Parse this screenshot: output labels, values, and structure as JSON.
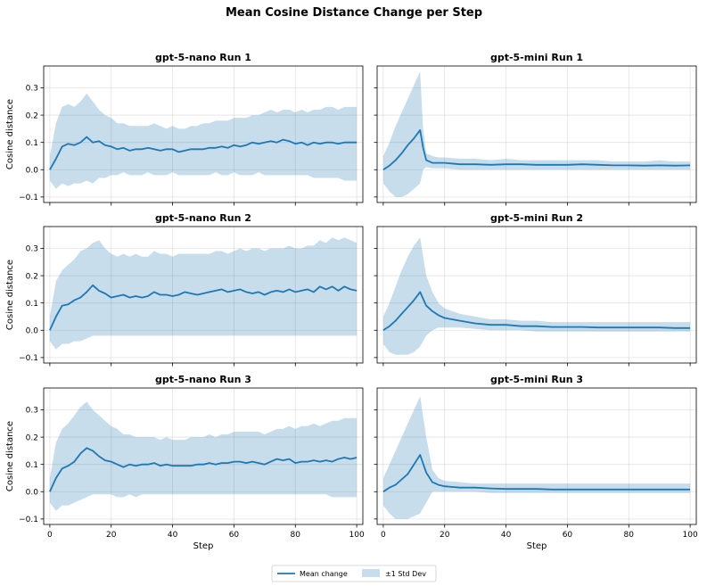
{
  "figure_title": "Mean Cosine Distance Change per Step",
  "colors": {
    "series": "#1f77b4",
    "band": "#1f77b4"
  },
  "legend": {
    "mean_label": "Mean change",
    "band_label": "±1 Std Dev",
    "placement": "bottom-center"
  },
  "chart_data": [
    {
      "type": "line",
      "title": "gpt-5-nano Run 1",
      "xlabel": "",
      "ylabel": "Cosine distance",
      "xlim": [
        -2,
        102
      ],
      "ylim": [
        -0.12,
        0.38
      ],
      "grid": true,
      "xticks": [
        "0",
        "20",
        "40",
        "60",
        "80",
        "100"
      ],
      "yticks": [
        "−0.1",
        "0.0",
        "0.1",
        "0.2",
        "0.3"
      ],
      "show_xtick_labels": false,
      "show_ytick_labels": true,
      "x": [
        0,
        2,
        4,
        6,
        8,
        10,
        12,
        14,
        16,
        18,
        20,
        22,
        24,
        26,
        28,
        30,
        32,
        34,
        36,
        38,
        40,
        42,
        44,
        46,
        48,
        50,
        52,
        54,
        56,
        58,
        60,
        62,
        64,
        66,
        68,
        70,
        72,
        74,
        76,
        78,
        80,
        82,
        84,
        86,
        88,
        90,
        92,
        94,
        96,
        98,
        100
      ],
      "mean": [
        0.0,
        0.04,
        0.085,
        0.095,
        0.09,
        0.1,
        0.12,
        0.1,
        0.105,
        0.09,
        0.085,
        0.075,
        0.08,
        0.07,
        0.075,
        0.075,
        0.08,
        0.075,
        0.07,
        0.075,
        0.075,
        0.065,
        0.07,
        0.075,
        0.075,
        0.075,
        0.08,
        0.08,
        0.085,
        0.08,
        0.09,
        0.085,
        0.09,
        0.1,
        0.095,
        0.1,
        0.105,
        0.1,
        0.11,
        0.105,
        0.095,
        0.1,
        0.09,
        0.1,
        0.095,
        0.1,
        0.1,
        0.095,
        0.1,
        0.1,
        0.1
      ],
      "upper": [
        0.05,
        0.17,
        0.23,
        0.24,
        0.23,
        0.25,
        0.28,
        0.25,
        0.22,
        0.2,
        0.19,
        0.17,
        0.17,
        0.16,
        0.16,
        0.16,
        0.16,
        0.17,
        0.16,
        0.15,
        0.16,
        0.15,
        0.15,
        0.16,
        0.16,
        0.17,
        0.17,
        0.18,
        0.18,
        0.18,
        0.19,
        0.19,
        0.19,
        0.2,
        0.2,
        0.21,
        0.22,
        0.21,
        0.22,
        0.22,
        0.21,
        0.22,
        0.21,
        0.22,
        0.22,
        0.23,
        0.23,
        0.22,
        0.23,
        0.23,
        0.23
      ],
      "lower": [
        -0.04,
        -0.07,
        -0.05,
        -0.06,
        -0.05,
        -0.05,
        -0.04,
        -0.05,
        -0.03,
        -0.03,
        -0.02,
        -0.02,
        -0.01,
        -0.02,
        -0.02,
        -0.02,
        -0.01,
        -0.02,
        -0.02,
        -0.02,
        -0.01,
        -0.02,
        -0.02,
        -0.02,
        -0.02,
        -0.02,
        -0.02,
        -0.01,
        -0.02,
        -0.02,
        -0.01,
        -0.02,
        -0.02,
        -0.02,
        -0.01,
        -0.02,
        -0.02,
        -0.02,
        -0.02,
        -0.02,
        -0.02,
        -0.02,
        -0.02,
        -0.03,
        -0.03,
        -0.03,
        -0.03,
        -0.03,
        -0.04,
        -0.04,
        -0.04
      ]
    },
    {
      "type": "line",
      "title": "gpt-5-mini Run 1",
      "xlabel": "",
      "ylabel": "",
      "xlim": [
        -2,
        102
      ],
      "ylim": [
        -0.12,
        0.38
      ],
      "grid": true,
      "xticks": [
        "0",
        "20",
        "40",
        "60",
        "80",
        "100"
      ],
      "yticks": [
        "−0.1",
        "0.0",
        "0.1",
        "0.2",
        "0.3"
      ],
      "show_xtick_labels": false,
      "show_ytick_labels": false,
      "x": [
        0,
        2,
        4,
        6,
        8,
        10,
        12,
        13,
        14,
        16,
        18,
        20,
        25,
        30,
        35,
        40,
        45,
        50,
        55,
        60,
        65,
        70,
        75,
        80,
        85,
        90,
        95,
        100
      ],
      "mean": [
        0.0,
        0.015,
        0.035,
        0.06,
        0.09,
        0.115,
        0.145,
        0.08,
        0.035,
        0.025,
        0.025,
        0.025,
        0.02,
        0.02,
        0.018,
        0.02,
        0.02,
        0.018,
        0.018,
        0.018,
        0.02,
        0.018,
        0.016,
        0.016,
        0.015,
        0.016,
        0.015,
        0.016
      ],
      "upper": [
        0.05,
        0.1,
        0.16,
        0.21,
        0.26,
        0.31,
        0.36,
        0.15,
        0.06,
        0.05,
        0.045,
        0.045,
        0.04,
        0.04,
        0.035,
        0.04,
        0.035,
        0.035,
        0.035,
        0.035,
        0.035,
        0.035,
        0.03,
        0.03,
        0.03,
        0.035,
        0.03,
        0.03
      ],
      "lower": [
        -0.05,
        -0.08,
        -0.1,
        -0.1,
        -0.09,
        -0.07,
        -0.05,
        0.0,
        0.01,
        0.005,
        0.005,
        0.005,
        0.0,
        0.0,
        0.0,
        0.0,
        0.0,
        0.0,
        0.0,
        0.0,
        0.0,
        0.0,
        0.0,
        0.0,
        0.0,
        0.0,
        0.0,
        0.0
      ]
    },
    {
      "type": "line",
      "title": "gpt-5-nano Run 2",
      "xlabel": "",
      "ylabel": "Cosine distance",
      "xlim": [
        -2,
        102
      ],
      "ylim": [
        -0.12,
        0.38
      ],
      "grid": true,
      "xticks": [
        "0",
        "20",
        "40",
        "60",
        "80",
        "100"
      ],
      "yticks": [
        "−0.1",
        "0.0",
        "0.1",
        "0.2",
        "0.3"
      ],
      "show_xtick_labels": false,
      "show_ytick_labels": true,
      "x": [
        0,
        2,
        4,
        6,
        8,
        10,
        12,
        14,
        16,
        18,
        20,
        22,
        24,
        26,
        28,
        30,
        32,
        34,
        36,
        38,
        40,
        42,
        44,
        46,
        48,
        50,
        52,
        54,
        56,
        58,
        60,
        62,
        64,
        66,
        68,
        70,
        72,
        74,
        76,
        78,
        80,
        82,
        84,
        86,
        88,
        90,
        92,
        94,
        96,
        98,
        100
      ],
      "mean": [
        0.0,
        0.05,
        0.09,
        0.095,
        0.11,
        0.12,
        0.14,
        0.165,
        0.145,
        0.135,
        0.12,
        0.125,
        0.13,
        0.12,
        0.125,
        0.12,
        0.125,
        0.14,
        0.13,
        0.13,
        0.125,
        0.13,
        0.14,
        0.135,
        0.13,
        0.135,
        0.14,
        0.145,
        0.15,
        0.14,
        0.145,
        0.15,
        0.14,
        0.135,
        0.14,
        0.13,
        0.14,
        0.145,
        0.14,
        0.15,
        0.14,
        0.145,
        0.15,
        0.14,
        0.16,
        0.15,
        0.16,
        0.145,
        0.16,
        0.15,
        0.145
      ],
      "upper": [
        0.05,
        0.18,
        0.22,
        0.24,
        0.26,
        0.29,
        0.3,
        0.32,
        0.33,
        0.3,
        0.28,
        0.27,
        0.28,
        0.27,
        0.28,
        0.27,
        0.27,
        0.29,
        0.28,
        0.28,
        0.27,
        0.28,
        0.28,
        0.28,
        0.28,
        0.28,
        0.28,
        0.29,
        0.29,
        0.28,
        0.29,
        0.3,
        0.29,
        0.3,
        0.3,
        0.29,
        0.3,
        0.3,
        0.3,
        0.31,
        0.3,
        0.3,
        0.31,
        0.31,
        0.33,
        0.32,
        0.34,
        0.33,
        0.34,
        0.33,
        0.32
      ],
      "lower": [
        -0.04,
        -0.07,
        -0.05,
        -0.05,
        -0.04,
        -0.04,
        -0.03,
        -0.02,
        -0.02,
        -0.02,
        -0.02,
        -0.02,
        -0.02,
        -0.02,
        -0.02,
        -0.02,
        -0.02,
        -0.02,
        -0.02,
        -0.02,
        -0.02,
        -0.02,
        -0.02,
        -0.02,
        -0.02,
        -0.02,
        -0.02,
        -0.02,
        -0.02,
        -0.02,
        -0.02,
        -0.02,
        -0.02,
        -0.02,
        -0.02,
        -0.02,
        -0.02,
        -0.02,
        -0.02,
        -0.02,
        -0.02,
        -0.02,
        -0.02,
        -0.02,
        -0.02,
        -0.02,
        -0.02,
        -0.02,
        -0.02,
        -0.02,
        -0.02
      ]
    },
    {
      "type": "line",
      "title": "gpt-5-mini Run 2",
      "xlabel": "",
      "ylabel": "",
      "xlim": [
        -2,
        102
      ],
      "ylim": [
        -0.12,
        0.38
      ],
      "grid": true,
      "xticks": [
        "0",
        "20",
        "40",
        "60",
        "80",
        "100"
      ],
      "yticks": [
        "−0.1",
        "0.0",
        "0.1",
        "0.2",
        "0.3"
      ],
      "show_xtick_labels": false,
      "show_ytick_labels": false,
      "x": [
        0,
        2,
        4,
        6,
        8,
        10,
        12,
        14,
        16,
        18,
        20,
        25,
        30,
        35,
        40,
        45,
        50,
        55,
        60,
        65,
        70,
        75,
        80,
        85,
        90,
        95,
        100
      ],
      "mean": [
        0.0,
        0.015,
        0.035,
        0.06,
        0.085,
        0.11,
        0.14,
        0.09,
        0.07,
        0.055,
        0.045,
        0.035,
        0.025,
        0.02,
        0.02,
        0.015,
        0.015,
        0.012,
        0.012,
        0.012,
        0.01,
        0.01,
        0.01,
        0.01,
        0.01,
        0.008,
        0.008
      ],
      "upper": [
        0.05,
        0.1,
        0.16,
        0.22,
        0.27,
        0.31,
        0.34,
        0.2,
        0.14,
        0.1,
        0.08,
        0.06,
        0.05,
        0.04,
        0.04,
        0.035,
        0.035,
        0.03,
        0.03,
        0.03,
        0.03,
        0.03,
        0.03,
        0.03,
        0.03,
        0.03,
        0.03
      ],
      "lower": [
        -0.05,
        -0.08,
        -0.09,
        -0.09,
        -0.09,
        -0.08,
        -0.06,
        -0.02,
        0.0,
        0.01,
        0.01,
        0.01,
        0.005,
        0.0,
        0.0,
        0.0,
        -0.005,
        -0.005,
        -0.005,
        -0.005,
        -0.005,
        -0.005,
        -0.005,
        -0.005,
        -0.005,
        -0.005,
        -0.005
      ]
    },
    {
      "type": "line",
      "title": "gpt-5-nano Run 3",
      "xlabel": "Step",
      "ylabel": "Cosine distance",
      "xlim": [
        -2,
        102
      ],
      "ylim": [
        -0.12,
        0.38
      ],
      "grid": true,
      "xticks": [
        "0",
        "20",
        "40",
        "60",
        "80",
        "100"
      ],
      "yticks": [
        "−0.1",
        "0.0",
        "0.1",
        "0.2",
        "0.3"
      ],
      "show_xtick_labels": true,
      "show_ytick_labels": true,
      "x": [
        0,
        2,
        4,
        6,
        8,
        10,
        12,
        14,
        16,
        18,
        20,
        22,
        24,
        26,
        28,
        30,
        32,
        34,
        36,
        38,
        40,
        42,
        44,
        46,
        48,
        50,
        52,
        54,
        56,
        58,
        60,
        62,
        64,
        66,
        68,
        70,
        72,
        74,
        76,
        78,
        80,
        82,
        84,
        86,
        88,
        90,
        92,
        94,
        96,
        98,
        100
      ],
      "mean": [
        0.0,
        0.05,
        0.085,
        0.095,
        0.11,
        0.14,
        0.16,
        0.15,
        0.13,
        0.115,
        0.11,
        0.1,
        0.09,
        0.1,
        0.095,
        0.1,
        0.1,
        0.105,
        0.095,
        0.1,
        0.095,
        0.095,
        0.095,
        0.095,
        0.1,
        0.1,
        0.105,
        0.1,
        0.105,
        0.105,
        0.11,
        0.11,
        0.105,
        0.11,
        0.105,
        0.1,
        0.11,
        0.12,
        0.115,
        0.12,
        0.105,
        0.11,
        0.11,
        0.115,
        0.11,
        0.115,
        0.11,
        0.12,
        0.125,
        0.12,
        0.125
      ],
      "upper": [
        0.05,
        0.18,
        0.23,
        0.25,
        0.28,
        0.31,
        0.33,
        0.3,
        0.28,
        0.26,
        0.24,
        0.23,
        0.21,
        0.21,
        0.2,
        0.2,
        0.2,
        0.2,
        0.19,
        0.2,
        0.19,
        0.19,
        0.19,
        0.2,
        0.2,
        0.2,
        0.21,
        0.2,
        0.21,
        0.21,
        0.22,
        0.22,
        0.22,
        0.22,
        0.22,
        0.21,
        0.22,
        0.23,
        0.23,
        0.24,
        0.23,
        0.24,
        0.24,
        0.25,
        0.24,
        0.25,
        0.26,
        0.26,
        0.27,
        0.27,
        0.27
      ],
      "lower": [
        -0.04,
        -0.07,
        -0.05,
        -0.05,
        -0.04,
        -0.03,
        -0.02,
        -0.01,
        -0.01,
        -0.01,
        -0.01,
        -0.02,
        -0.02,
        -0.01,
        -0.02,
        -0.01,
        -0.01,
        -0.01,
        -0.01,
        -0.01,
        -0.01,
        -0.01,
        -0.01,
        -0.01,
        -0.01,
        -0.01,
        -0.01,
        -0.01,
        -0.01,
        -0.01,
        -0.01,
        -0.01,
        -0.01,
        -0.01,
        -0.01,
        -0.01,
        -0.01,
        -0.01,
        -0.01,
        -0.01,
        -0.01,
        -0.01,
        -0.01,
        -0.01,
        -0.01,
        -0.01,
        -0.02,
        -0.02,
        -0.02,
        -0.02,
        -0.02
      ]
    },
    {
      "type": "line",
      "title": "gpt-5-mini Run 3",
      "xlabel": "Step",
      "ylabel": "",
      "xlim": [
        -2,
        102
      ],
      "ylim": [
        -0.12,
        0.38
      ],
      "grid": true,
      "xticks": [
        "0",
        "20",
        "40",
        "60",
        "80",
        "100"
      ],
      "yticks": [
        "−0.1",
        "0.0",
        "0.1",
        "0.2",
        "0.3"
      ],
      "show_xtick_labels": true,
      "show_ytick_labels": false,
      "x": [
        0,
        2,
        4,
        6,
        8,
        10,
        12,
        14,
        16,
        18,
        20,
        25,
        30,
        35,
        40,
        45,
        50,
        55,
        60,
        65,
        70,
        75,
        80,
        85,
        90,
        95,
        100
      ],
      "mean": [
        0.0,
        0.015,
        0.025,
        0.045,
        0.065,
        0.1,
        0.135,
        0.07,
        0.035,
        0.025,
        0.02,
        0.015,
        0.015,
        0.012,
        0.01,
        0.01,
        0.01,
        0.008,
        0.008,
        0.008,
        0.008,
        0.008,
        0.008,
        0.008,
        0.008,
        0.008,
        0.008
      ],
      "upper": [
        0.05,
        0.1,
        0.15,
        0.2,
        0.25,
        0.3,
        0.35,
        0.2,
        0.08,
        0.05,
        0.04,
        0.035,
        0.03,
        0.03,
        0.03,
        0.03,
        0.03,
        0.03,
        0.03,
        0.03,
        0.03,
        0.03,
        0.03,
        0.03,
        0.03,
        0.03,
        0.03
      ],
      "lower": [
        -0.05,
        -0.08,
        -0.1,
        -0.1,
        -0.1,
        -0.09,
        -0.08,
        -0.04,
        0.0,
        0.0,
        0.0,
        0.0,
        0.0,
        -0.005,
        -0.005,
        -0.005,
        -0.005,
        -0.005,
        -0.005,
        -0.005,
        -0.005,
        -0.005,
        -0.005,
        -0.005,
        -0.005,
        -0.005,
        -0.005
      ]
    }
  ]
}
